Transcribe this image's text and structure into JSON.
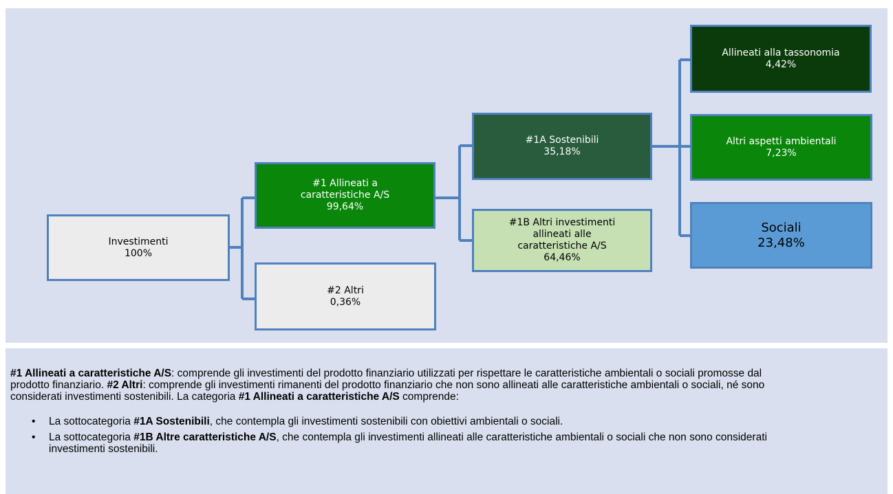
{
  "nodes": [
    {
      "lines": [
        "Investimenti",
        "100%"
      ]
    },
    {
      "lines": [
        "#1 Allineati a",
        "caratteristiche A/S",
        "99,64%"
      ]
    },
    {
      "lines": [
        "#2 Altri",
        "0,36%"
      ]
    },
    {
      "lines": [
        "#1A Sostenibili",
        "35,18%"
      ]
    },
    {
      "lines": [
        "#1B Altri investimenti",
        "allineati alle",
        "caratteristiche A/S",
        "64,46%"
      ]
    },
    {
      "lines": [
        "Allineati alla tassonomia",
        "4,42%"
      ]
    },
    {
      "lines": [
        "Altri aspetti ambientali",
        "7,23%"
      ]
    },
    {
      "lines": [
        "Sociali",
        "23,48%"
      ]
    }
  ],
  "description": {
    "paragraph": [
      "#1 Allineati a caratteristiche A/S",
      ": comprende gli investimenti del prodotto finanziario utilizzati per rispettare le caratteristiche ambientali o sociali promosse dal prodotto finanziario. ",
      "#2 Altri",
      ": comprende gli investimenti rimanenti del prodotto finanziario che non sono allineati alle caratteristiche ambientali o sociali, né sono considerati investimenti sostenibili. La categoria ",
      "#1 Allineati a caratteristiche A/S",
      " comprende:"
    ],
    "bullets": [
      [
        "La sottocategoria ",
        "#1A Sostenibili",
        ", che contempla gli investimenti sostenibili con obiettivi ambientali o sociali."
      ],
      [
        "La sottocategoria ",
        "#1B Altre caratteristiche A/S",
        ", che contempla gli investimenti allineati alle caratteristiche ambientali o sociali che non sono considerati investimenti sostenibili."
      ]
    ]
  }
}
